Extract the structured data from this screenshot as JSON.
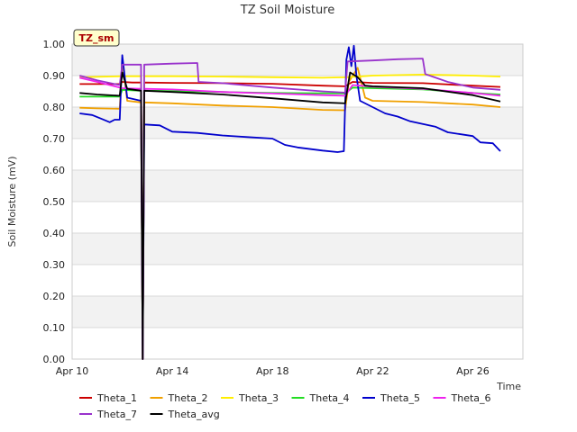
{
  "chart_data": {
    "type": "line",
    "title": "TZ Soil Moisture",
    "xlabel": "Time",
    "ylabel": "Soil Moisture (mV)",
    "badge": "TZ_sm",
    "xlim": [
      10,
      28
    ],
    "ylim": [
      0.0,
      1.0
    ],
    "yticks": [
      0.0,
      0.1,
      0.2,
      0.3,
      0.4,
      0.5,
      0.6,
      0.7,
      0.8,
      0.9,
      1.0
    ],
    "ytick_labels": [
      "0.00",
      "0.10",
      "0.20",
      "0.30",
      "0.40",
      "0.50",
      "0.60",
      "0.70",
      "0.80",
      "0.90",
      "1.00"
    ],
    "xticks": [
      10,
      14,
      18,
      22,
      26
    ],
    "xtick_labels": [
      "Apr 10",
      "Apr 14",
      "Apr 18",
      "Apr 22",
      "Apr 26"
    ],
    "x_units": "day of April",
    "series": [
      {
        "name": "Theta_1",
        "color": "#cc0000",
        "points": [
          [
            10.3,
            0.873
          ],
          [
            11.9,
            0.873
          ],
          [
            12.0,
            0.88
          ],
          [
            12.4,
            0.878
          ],
          [
            12.75,
            0.878
          ],
          [
            12.82,
            0.0
          ],
          [
            12.88,
            0.878
          ],
          [
            14.0,
            0.877
          ],
          [
            16.0,
            0.876
          ],
          [
            18.0,
            0.874
          ],
          [
            20.0,
            0.868
          ],
          [
            20.9,
            0.866
          ],
          [
            21.2,
            0.88
          ],
          [
            22.0,
            0.877
          ],
          [
            24.0,
            0.876
          ],
          [
            26.0,
            0.868
          ],
          [
            27.1,
            0.864
          ]
        ]
      },
      {
        "name": "Theta_2",
        "color": "#f0a000",
        "points": [
          [
            10.3,
            0.798
          ],
          [
            11.0,
            0.796
          ],
          [
            11.9,
            0.795
          ],
          [
            12.0,
            0.95
          ],
          [
            12.2,
            0.82
          ],
          [
            12.75,
            0.815
          ],
          [
            12.82,
            0.0
          ],
          [
            12.88,
            0.815
          ],
          [
            14.0,
            0.812
          ],
          [
            16.0,
            0.805
          ],
          [
            18.0,
            0.8
          ],
          [
            20.0,
            0.791
          ],
          [
            20.9,
            0.79
          ],
          [
            21.05,
            0.88
          ],
          [
            21.4,
            0.925
          ],
          [
            21.7,
            0.83
          ],
          [
            22.0,
            0.82
          ],
          [
            24.0,
            0.816
          ],
          [
            26.0,
            0.808
          ],
          [
            27.1,
            0.8
          ]
        ]
      },
      {
        "name": "Theta_3",
        "color": "#ffee00",
        "points": [
          [
            10.3,
            0.895
          ],
          [
            12.0,
            0.898
          ],
          [
            12.75,
            0.898
          ],
          [
            12.82,
            0.0
          ],
          [
            12.88,
            0.898
          ],
          [
            14.0,
            0.898
          ],
          [
            16.0,
            0.897
          ],
          [
            18.0,
            0.895
          ],
          [
            20.0,
            0.893
          ],
          [
            21.0,
            0.895
          ],
          [
            22.0,
            0.9
          ],
          [
            24.0,
            0.903
          ],
          [
            26.0,
            0.9
          ],
          [
            27.1,
            0.897
          ]
        ]
      },
      {
        "name": "Theta_4",
        "color": "#22dd22",
        "points": [
          [
            10.3,
            0.833
          ],
          [
            11.9,
            0.833
          ],
          [
            12.0,
            0.855
          ],
          [
            12.75,
            0.852
          ],
          [
            12.82,
            0.0
          ],
          [
            12.88,
            0.852
          ],
          [
            14.0,
            0.851
          ],
          [
            16.0,
            0.848
          ],
          [
            18.0,
            0.845
          ],
          [
            20.0,
            0.844
          ],
          [
            20.9,
            0.843
          ],
          [
            21.2,
            0.862
          ],
          [
            22.0,
            0.86
          ],
          [
            24.0,
            0.856
          ],
          [
            26.0,
            0.845
          ],
          [
            27.1,
            0.84
          ]
        ]
      },
      {
        "name": "Theta_5",
        "color": "#0000cc",
        "points": [
          [
            10.3,
            0.78
          ],
          [
            10.8,
            0.775
          ],
          [
            11.2,
            0.762
          ],
          [
            11.5,
            0.752
          ],
          [
            11.7,
            0.76
          ],
          [
            11.9,
            0.76
          ],
          [
            12.0,
            0.965
          ],
          [
            12.2,
            0.83
          ],
          [
            12.75,
            0.82
          ],
          [
            12.82,
            0.0
          ],
          [
            12.88,
            0.745
          ],
          [
            13.5,
            0.742
          ],
          [
            14.0,
            0.722
          ],
          [
            15.0,
            0.718
          ],
          [
            16.0,
            0.71
          ],
          [
            17.0,
            0.705
          ],
          [
            18.0,
            0.7
          ],
          [
            18.5,
            0.68
          ],
          [
            19.0,
            0.672
          ],
          [
            20.0,
            0.662
          ],
          [
            20.6,
            0.657
          ],
          [
            20.85,
            0.66
          ],
          [
            20.95,
            0.95
          ],
          [
            21.05,
            0.99
          ],
          [
            21.15,
            0.93
          ],
          [
            21.25,
            0.995
          ],
          [
            21.35,
            0.9
          ],
          [
            21.5,
            0.82
          ],
          [
            22.0,
            0.8
          ],
          [
            22.5,
            0.78
          ],
          [
            23.0,
            0.77
          ],
          [
            23.5,
            0.755
          ],
          [
            24.5,
            0.738
          ],
          [
            25.0,
            0.72
          ],
          [
            26.0,
            0.708
          ],
          [
            26.3,
            0.688
          ],
          [
            26.8,
            0.685
          ],
          [
            27.1,
            0.66
          ]
        ]
      },
      {
        "name": "Theta_6",
        "color": "#ee22ee",
        "points": [
          [
            10.3,
            0.893
          ],
          [
            11.0,
            0.88
          ],
          [
            11.9,
            0.862
          ],
          [
            12.0,
            0.86
          ],
          [
            12.75,
            0.858
          ],
          [
            12.82,
            0.0
          ],
          [
            12.88,
            0.858
          ],
          [
            14.0,
            0.856
          ],
          [
            16.0,
            0.848
          ],
          [
            18.0,
            0.843
          ],
          [
            20.0,
            0.838
          ],
          [
            20.9,
            0.836
          ],
          [
            21.2,
            0.87
          ],
          [
            22.0,
            0.865
          ],
          [
            24.0,
            0.858
          ],
          [
            26.0,
            0.845
          ],
          [
            27.1,
            0.836
          ]
        ]
      },
      {
        "name": "Theta_7",
        "color": "#9933cc",
        "points": [
          [
            10.3,
            0.9
          ],
          [
            11.0,
            0.885
          ],
          [
            11.9,
            0.87
          ],
          [
            12.0,
            0.935
          ],
          [
            12.75,
            0.935
          ],
          [
            12.82,
            0.0
          ],
          [
            12.88,
            0.935
          ],
          [
            14.0,
            0.938
          ],
          [
            15.0,
            0.94
          ],
          [
            15.05,
            0.88
          ],
          [
            16.0,
            0.876
          ],
          [
            18.0,
            0.862
          ],
          [
            20.0,
            0.85
          ],
          [
            20.9,
            0.846
          ],
          [
            21.0,
            0.945
          ],
          [
            22.0,
            0.948
          ],
          [
            23.0,
            0.952
          ],
          [
            24.0,
            0.954
          ],
          [
            24.1,
            0.905
          ],
          [
            25.0,
            0.88
          ],
          [
            26.0,
            0.862
          ],
          [
            27.1,
            0.855
          ]
        ]
      },
      {
        "name": "Theta_avg",
        "color": "#000000",
        "points": [
          [
            10.3,
            0.845
          ],
          [
            11.0,
            0.84
          ],
          [
            11.9,
            0.836
          ],
          [
            12.0,
            0.91
          ],
          [
            12.2,
            0.858
          ],
          [
            12.75,
            0.852
          ],
          [
            12.82,
            0.0
          ],
          [
            12.88,
            0.852
          ],
          [
            14.0,
            0.848
          ],
          [
            16.0,
            0.84
          ],
          [
            18.0,
            0.828
          ],
          [
            20.0,
            0.815
          ],
          [
            20.9,
            0.812
          ],
          [
            21.1,
            0.91
          ],
          [
            21.4,
            0.895
          ],
          [
            21.7,
            0.868
          ],
          [
            22.0,
            0.866
          ],
          [
            24.0,
            0.86
          ],
          [
            26.0,
            0.838
          ],
          [
            27.1,
            0.818
          ]
        ]
      }
    ],
    "legend": {
      "placement": "bottom",
      "row1": [
        "Theta_1",
        "Theta_2",
        "Theta_3",
        "Theta_4",
        "Theta_5",
        "Theta_6"
      ],
      "row2": [
        "Theta_7",
        "Theta_avg"
      ]
    }
  },
  "colors": {
    "band": "#f2f2f2",
    "grid": "#d9d9d9",
    "badge_fill": "#ffffcc",
    "badge_stroke": "#333333"
  }
}
